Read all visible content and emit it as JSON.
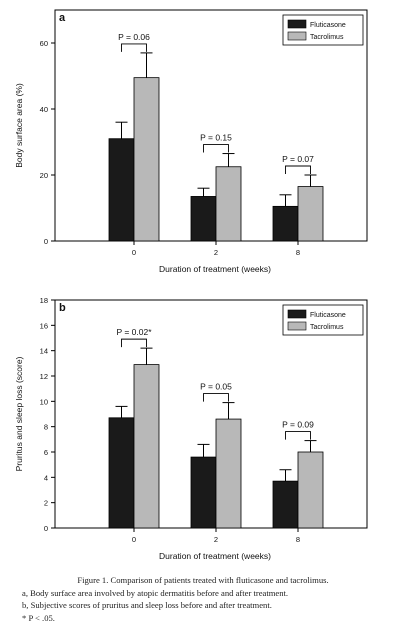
{
  "chart_data": [
    {
      "type": "bar",
      "panel_label": "a",
      "xlabel": "Duration of treatment (weeks)",
      "ylabel": "Body surface area (%)",
      "ylim": [
        0,
        70
      ],
      "yticks": [
        0,
        20,
        40,
        60
      ],
      "categories": [
        "0",
        "2",
        "8"
      ],
      "series": [
        {
          "name": "Fluticasone",
          "color": "#1a1a1a",
          "values": [
            31,
            13.5,
            10.5
          ],
          "errors": [
            5,
            2.5,
            3.5
          ]
        },
        {
          "name": "Tacrolimus",
          "color": "#b8b8b8",
          "values": [
            49.5,
            22.5,
            16.5
          ],
          "errors": [
            7.5,
            4,
            3.5
          ]
        }
      ],
      "annotations": [
        "P = 0.06",
        "P = 0.15",
        "P = 0.07"
      ],
      "legend": "top-right",
      "grid": false
    },
    {
      "type": "bar",
      "panel_label": "b",
      "xlabel": "Duration of treatment (weeks)",
      "ylabel": "Pruritus and sleep loss (score)",
      "ylim": [
        0,
        18
      ],
      "yticks": [
        0,
        2,
        4,
        6,
        8,
        10,
        12,
        14,
        16,
        18
      ],
      "categories": [
        "0",
        "2",
        "8"
      ],
      "series": [
        {
          "name": "Fluticasone",
          "color": "#1a1a1a",
          "values": [
            8.7,
            5.6,
            3.7
          ],
          "errors": [
            0.9,
            1.0,
            0.9
          ]
        },
        {
          "name": "Tacrolimus",
          "color": "#b8b8b8",
          "values": [
            12.9,
            8.6,
            6.0
          ],
          "errors": [
            1.3,
            1.3,
            0.9
          ]
        }
      ],
      "annotations": [
        "P = 0.02*",
        "P = 0.05",
        "P = 0.09"
      ],
      "legend": "top-right",
      "grid": false
    }
  ],
  "caption": {
    "line1": "Figure 1. Comparison of patients treated with fluticasone and tacrolimus.",
    "line2": "a, Body surface area involved by atopic dermatitis before and after treatment.",
    "line3": "b, Subjective scores of pruritus and sleep loss before and after treatment.",
    "line4": "* P < .05."
  }
}
